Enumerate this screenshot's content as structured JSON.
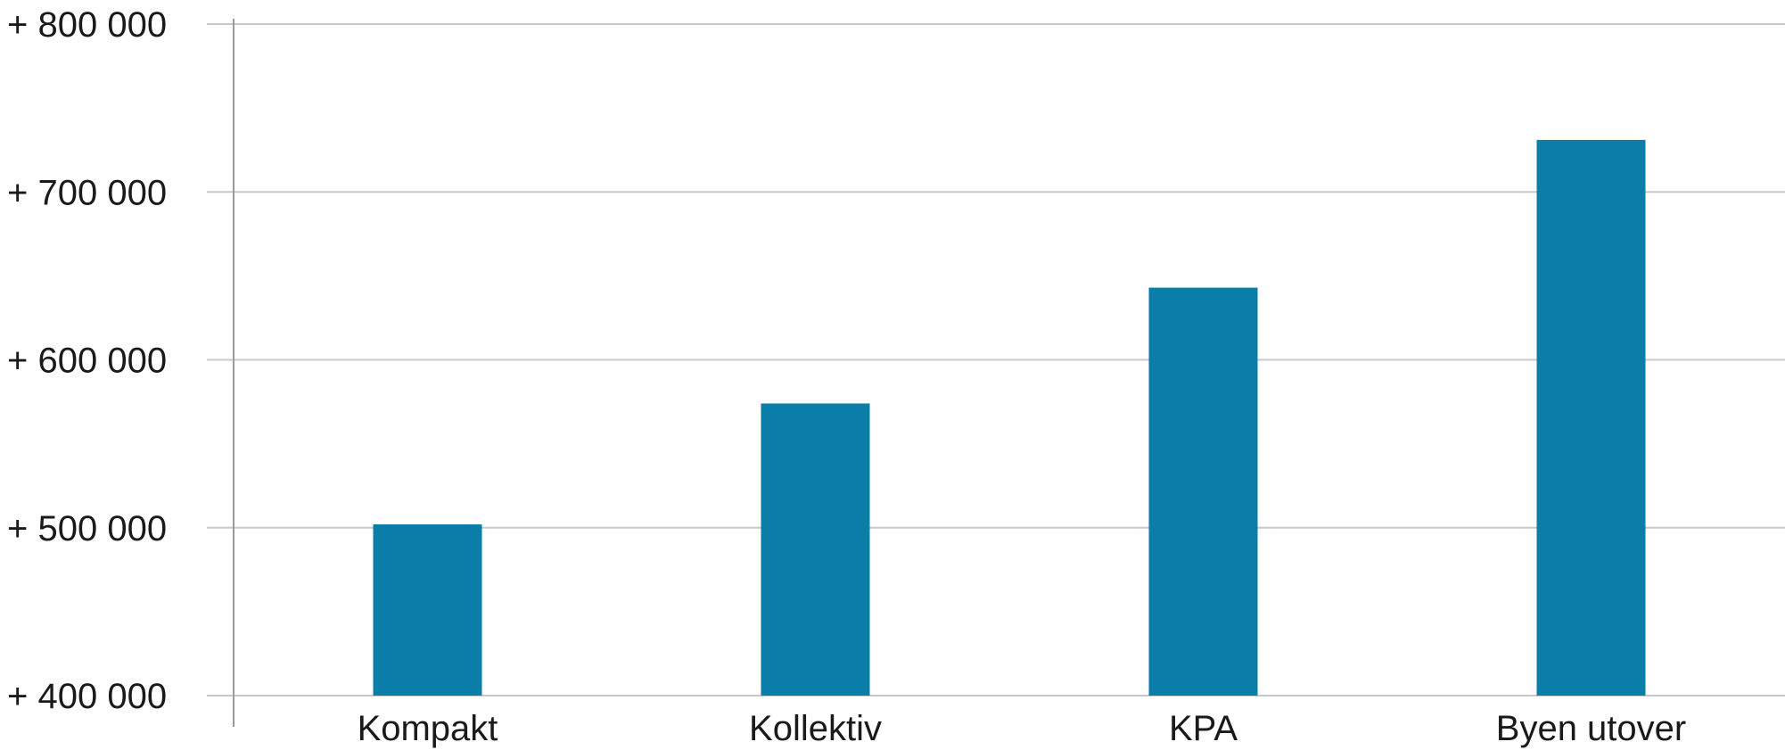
{
  "chart_data": {
    "type": "bar",
    "title": "",
    "xlabel": "",
    "ylabel": "",
    "categories": [
      "Kompakt",
      "Kollektiv",
      "KPA",
      "Byen utover"
    ],
    "values": [
      502000,
      574000,
      643000,
      731000
    ],
    "ylim": [
      400000,
      800000
    ],
    "yticks": [
      400000,
      500000,
      600000,
      700000,
      800000
    ],
    "ytick_labels": [
      "+ 400 000",
      "+ 500 000",
      "+ 600 000",
      "+ 700 000",
      "+ 800 000"
    ],
    "grid": true,
    "legend": "none",
    "bar_color": "#0a7ea8"
  }
}
